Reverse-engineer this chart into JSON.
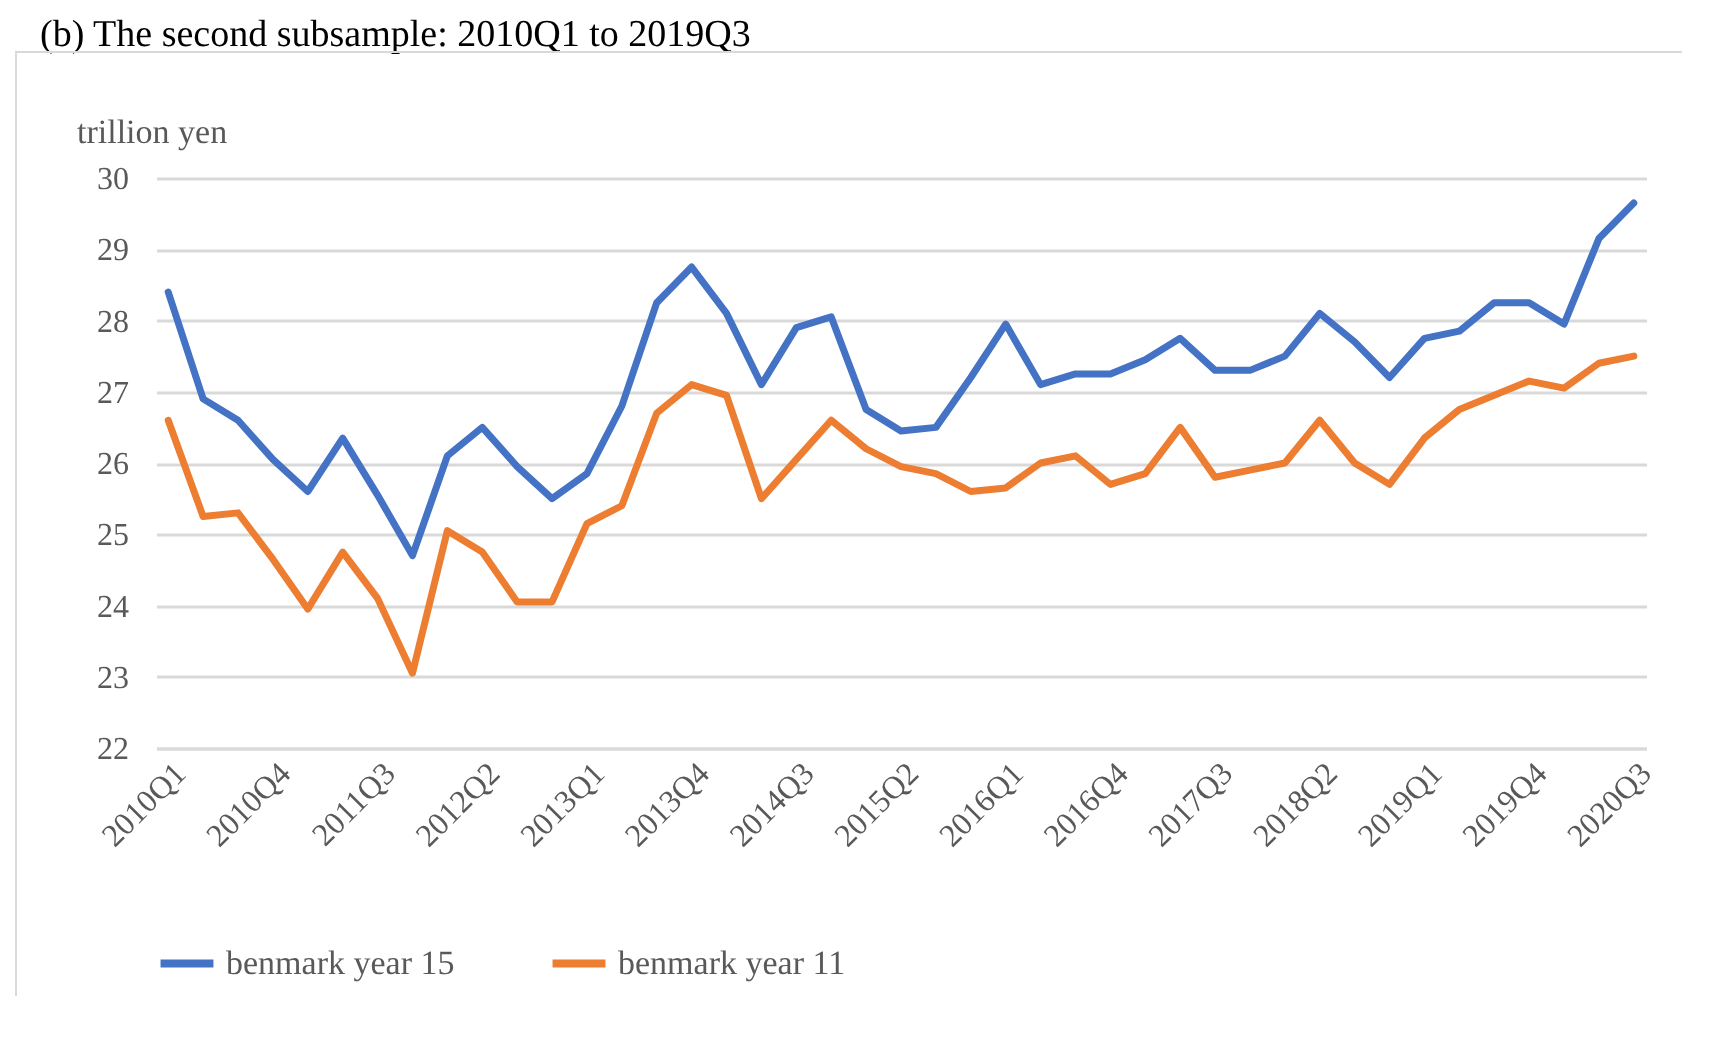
{
  "chart_data": {
    "type": "line",
    "title": "(b) The second subsample: 2010Q1 to 2019Q3",
    "ylabel": "trillion yen",
    "categories": [
      "2010Q1",
      null,
      null,
      "2010Q4",
      null,
      null,
      "2011Q3",
      null,
      null,
      "2012Q2",
      null,
      null,
      "2013Q1",
      null,
      null,
      "2013Q4",
      null,
      null,
      "2014Q3",
      null,
      null,
      "2015Q2",
      null,
      null,
      "2016Q1",
      null,
      null,
      "2016Q4",
      null,
      null,
      "2017Q3",
      null,
      null,
      "2018Q2",
      null,
      null,
      "2019Q1",
      null,
      null,
      "2019Q4",
      null,
      null,
      "2020Q3"
    ],
    "series": [
      {
        "name": "benmark year 15",
        "color": "#4472c4",
        "values": [
          28.4,
          26.9,
          26.6,
          26.05,
          25.6,
          26.35,
          25.55,
          24.7,
          26.1,
          26.5,
          25.95,
          25.5,
          25.85,
          26.8,
          28.25,
          28.75,
          28.1,
          27.1,
          27.9,
          28.05,
          26.75,
          26.45,
          26.5,
          27.2,
          27.95,
          27.1,
          27.25,
          27.25,
          27.45,
          27.75,
          27.3,
          27.3,
          27.5,
          28.1,
          27.7,
          27.2,
          27.75,
          27.85,
          28.25,
          28.25,
          27.95,
          29.15,
          29.65
        ]
      },
      {
        "name": "benmark year 11",
        "color": "#ed7d31",
        "values": [
          26.6,
          25.25,
          25.3,
          24.65,
          23.95,
          24.75,
          24.1,
          23.05,
          25.05,
          24.75,
          24.05,
          24.05,
          25.15,
          25.4,
          26.7,
          27.1,
          26.95,
          25.5,
          26.05,
          26.6,
          26.2,
          25.95,
          25.85,
          25.6,
          25.65,
          26.0,
          26.1,
          25.7,
          25.85,
          26.5,
          25.8,
          25.9,
          26.0,
          26.6,
          26.0,
          25.7,
          26.35,
          26.75,
          26.95,
          27.15,
          27.05,
          27.4,
          27.5
        ]
      }
    ],
    "ylim": [
      22,
      30
    ],
    "yticks": [
      22,
      23,
      24,
      25,
      26,
      27,
      28,
      29,
      30
    ],
    "grid": "y",
    "legend": "bottom",
    "marker": "none",
    "line_style": "solid"
  }
}
